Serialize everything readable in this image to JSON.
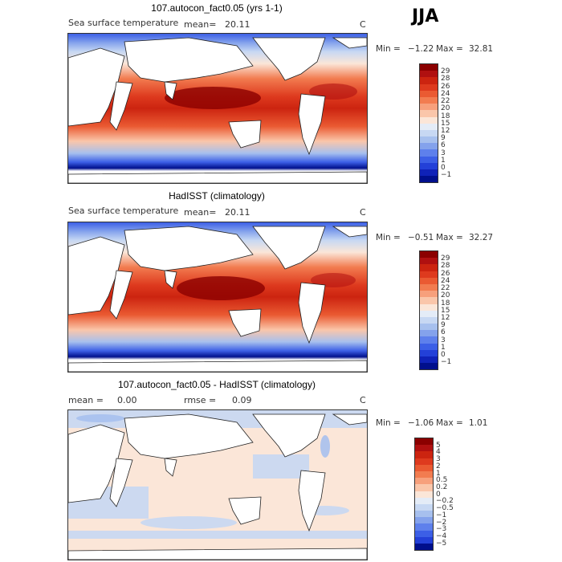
{
  "season": "JJA",
  "panels": [
    {
      "id": "model",
      "title": "107.autocon_fact0.05 (yrs 1-1)",
      "field_label": "Sea surface temperature",
      "stat1_label": "mean=",
      "stat1_value": "20.11",
      "stat2_label": "",
      "stat2_value": "",
      "units": "C",
      "min_label": "Min =",
      "min_value": "−1.22",
      "max_label": "Max =",
      "max_value": "32.81",
      "colorbar_ticks": [
        "29",
        "28",
        "26",
        "24",
        "22",
        "20",
        "18",
        "15",
        "12",
        "9",
        "6",
        "3",
        "1",
        "0",
        "−1"
      ],
      "colors": [
        "#8b0000",
        "#b01010",
        "#cc2410",
        "#de3a1e",
        "#ea5a32",
        "#f27c50",
        "#f7a07c",
        "#fac6aa",
        "#fbe6d8",
        "#e4ecf7",
        "#c7d8f3",
        "#a7c0ee",
        "#84a2ec",
        "#5e80ec",
        "#3c5fe6",
        "#2340d8",
        "#0f22b8",
        "#000f8c"
      ]
    },
    {
      "id": "obs",
      "title": "HadISST (climatology)",
      "field_label": "Sea surface temperature",
      "stat1_label": "mean=",
      "stat1_value": "20.11",
      "stat2_label": "",
      "stat2_value": "",
      "units": "C",
      "min_label": "Min =",
      "min_value": "−0.51",
      "max_label": "Max =",
      "max_value": "32.27",
      "colorbar_ticks": [
        "29",
        "28",
        "26",
        "24",
        "22",
        "20",
        "18",
        "15",
        "12",
        "9",
        "6",
        "3",
        "1",
        "0",
        "−1"
      ],
      "colors": [
        "#8b0000",
        "#b01010",
        "#cc2410",
        "#de3a1e",
        "#ea5a32",
        "#f27c50",
        "#f7a07c",
        "#fac6aa",
        "#fbe6d8",
        "#e4ecf7",
        "#c7d8f3",
        "#a7c0ee",
        "#84a2ec",
        "#5e80ec",
        "#3c5fe6",
        "#2340d8",
        "#0f22b8",
        "#000f8c"
      ]
    },
    {
      "id": "diff",
      "title": "107.autocon_fact0.05 - HadISST (climatology)",
      "field_label": "",
      "stat1_label": "mean =",
      "stat1_value": "0.00",
      "stat2_label": "rmse =",
      "stat2_value": "0.09",
      "units": "C",
      "min_label": "Min =",
      "min_value": "−1.06",
      "max_label": "Max =",
      "max_value": "1.01",
      "colorbar_ticks": [
        "5",
        "4",
        "3",
        "2",
        "1",
        "0.5",
        "0.2",
        "0",
        "−0.2",
        "−0.5",
        "−1",
        "−2",
        "−3",
        "−4",
        "−5"
      ],
      "colors": [
        "#8b0000",
        "#b01010",
        "#cc2410",
        "#de3a1e",
        "#ea5a32",
        "#f27c50",
        "#f7a07c",
        "#fac6aa",
        "#fbe6d8",
        "#e4ecf7",
        "#c7d8f3",
        "#a7c0ee",
        "#84a2ec",
        "#5e80ec",
        "#3c5fe6",
        "#2340d8",
        "#000f8c"
      ]
    }
  ]
}
